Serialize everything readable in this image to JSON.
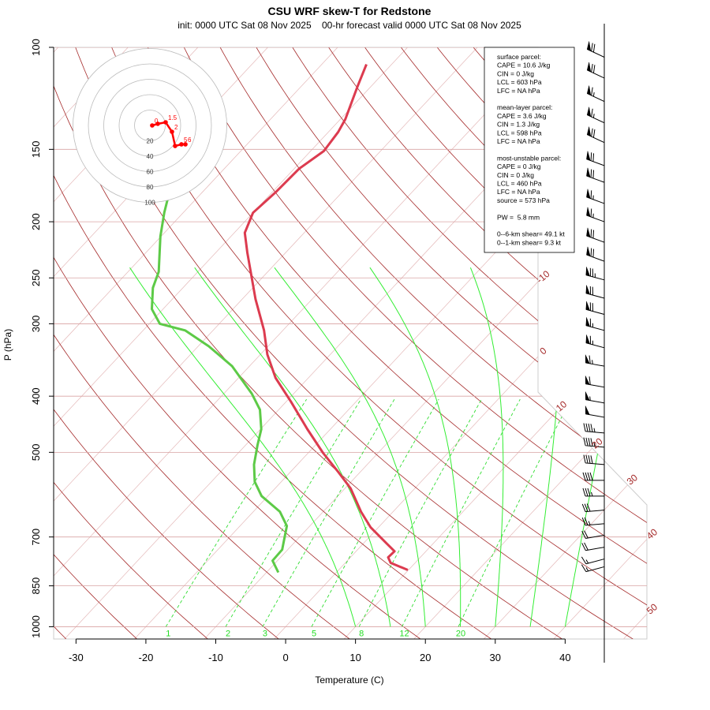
{
  "chart_data": {
    "type": "skewt",
    "title": "CSU WRF skew-T for Redstone",
    "subtitle": "init: 0000 UTC Sat 08 Nov 2025    00-hr forecast valid 0000 UTC Sat 08 Nov 2025",
    "xlabel": "Temperature (C)",
    "ylabel": "P (hPa)",
    "xlim": [
      -33.2,
      51.7
    ],
    "ylim": [
      1050,
      100
    ],
    "log_y": true,
    "xticks": [
      -30,
      -20,
      -10,
      0,
      10,
      20,
      30,
      40
    ],
    "yticks": [
      100,
      150,
      200,
      250,
      300,
      400,
      500,
      700,
      850,
      1000
    ],
    "isotherms": [
      -110,
      -100,
      -90,
      -80,
      -70,
      -60,
      -50,
      -40,
      -30,
      -20,
      -10,
      0,
      10,
      20,
      30,
      40,
      50
    ],
    "dry_adiabats": [
      240,
      250,
      260,
      270,
      280,
      290,
      300,
      310,
      320,
      330,
      340,
      350,
      360,
      370,
      380,
      390,
      400,
      410,
      420,
      430,
      440,
      450
    ],
    "moist_adiabats": [
      10,
      15,
      20,
      25,
      30,
      35,
      40
    ],
    "mixing_ratios": [
      1,
      2,
      3,
      5,
      8,
      12,
      20
    ],
    "series": [
      {
        "color": "#dc3b4f",
        "pressure": [
          798,
          776,
          759,
          741,
          718,
          674,
          633,
          577,
          542,
          501,
          456,
          409,
          372,
          339,
          308,
          272,
          226,
          209,
          193,
          178,
          162,
          151,
          140,
          133,
          117,
          107
        ],
        "temperature": [
          9.9,
          6.5,
          5.4,
          5.5,
          3.3,
          -1.1,
          -4.6,
          -9.2,
          -13.0,
          -17.9,
          -23.3,
          -29.3,
          -34.7,
          -39.0,
          -42.7,
          -48.1,
          -55.5,
          -58.5,
          -60.0,
          -59.5,
          -59.3,
          -58.1,
          -58.6,
          -59.3,
          -61.9,
          -63.6
        ]
      },
      {
        "color": "#5dca47",
        "pressure": [
          806,
          769,
          736,
          670,
          633,
          595,
          562,
          525,
          486,
          456,
          422,
          396,
          355,
          328,
          308,
          300,
          283,
          260,
          244,
          212,
          193,
          178
        ],
        "temperature": [
          -8.3,
          -10.7,
          -10.8,
          -13.3,
          -16.2,
          -20.9,
          -23.8,
          -26.2,
          -28.3,
          -29.9,
          -32.7,
          -36.0,
          -42.5,
          -48.5,
          -54.0,
          -58.5,
          -61.6,
          -64.3,
          -65.6,
          -70.1,
          -72.7,
          -74.7
        ]
      }
    ],
    "wind": {
      "pressure": [
        104,
        113,
        124,
        135,
        146,
        160,
        171,
        186,
        200,
        217,
        234,
        252,
        271,
        289,
        308,
        330,
        355,
        386,
        411,
        435,
        463,
        490,
        525,
        559,
        595,
        629,
        664,
        695,
        729,
        764,
        788
      ],
      "speed": [
        70,
        70,
        65,
        65,
        70,
        70,
        70,
        65,
        65,
        70,
        70,
        75,
        70,
        70,
        65,
        65,
        65,
        60,
        55,
        50,
        45,
        45,
        40,
        40,
        35,
        30,
        25,
        20,
        20,
        15,
        15
      ],
      "direction": [
        295,
        295,
        295,
        295,
        295,
        290,
        290,
        290,
        290,
        290,
        290,
        285,
        285,
        285,
        285,
        285,
        280,
        280,
        280,
        280,
        275,
        275,
        275,
        270,
        270,
        265,
        265,
        260,
        260,
        255,
        255
      ]
    },
    "hodograph": {
      "rings": [
        20,
        40,
        60,
        80,
        100
      ],
      "color": "#ff0000",
      "u": [
        3,
        10.3,
        20.5,
        28.7,
        32.8,
        41,
        46.2
      ],
      "v": [
        0,
        2.1,
        4.1,
        -8.2,
        -26.7,
        -24.6,
        -24.6
      ],
      "labels": [
        "0",
        null,
        "1.5",
        "2",
        null,
        "5",
        "6"
      ]
    },
    "info_box": [
      [
        "surface parcel:",
        "CAPE = 10.6 J/kg",
        "CIN = 0 J/kg",
        "LCL = 603 hPa",
        "LFC = NA hPa"
      ],
      [
        "mean-layer parcel:",
        "CAPE = 3.6 J/kg",
        "CIN = 1.3 J/kg",
        "LCL = 598 hPa",
        "LFC = NA hPa"
      ],
      [
        "most-unstable parcel:",
        "CAPE = 0 J/kg",
        "CIN = 0 J/kg",
        "LCL = 460 hPa",
        "LFC = NA hPa",
        "source = 573 hPa"
      ],
      [
        "PW =  5.8 mm"
      ],
      [
        "0--6-km shear= 49.1 kt",
        "0--1-km shear= 9.3 kt"
      ]
    ]
  }
}
